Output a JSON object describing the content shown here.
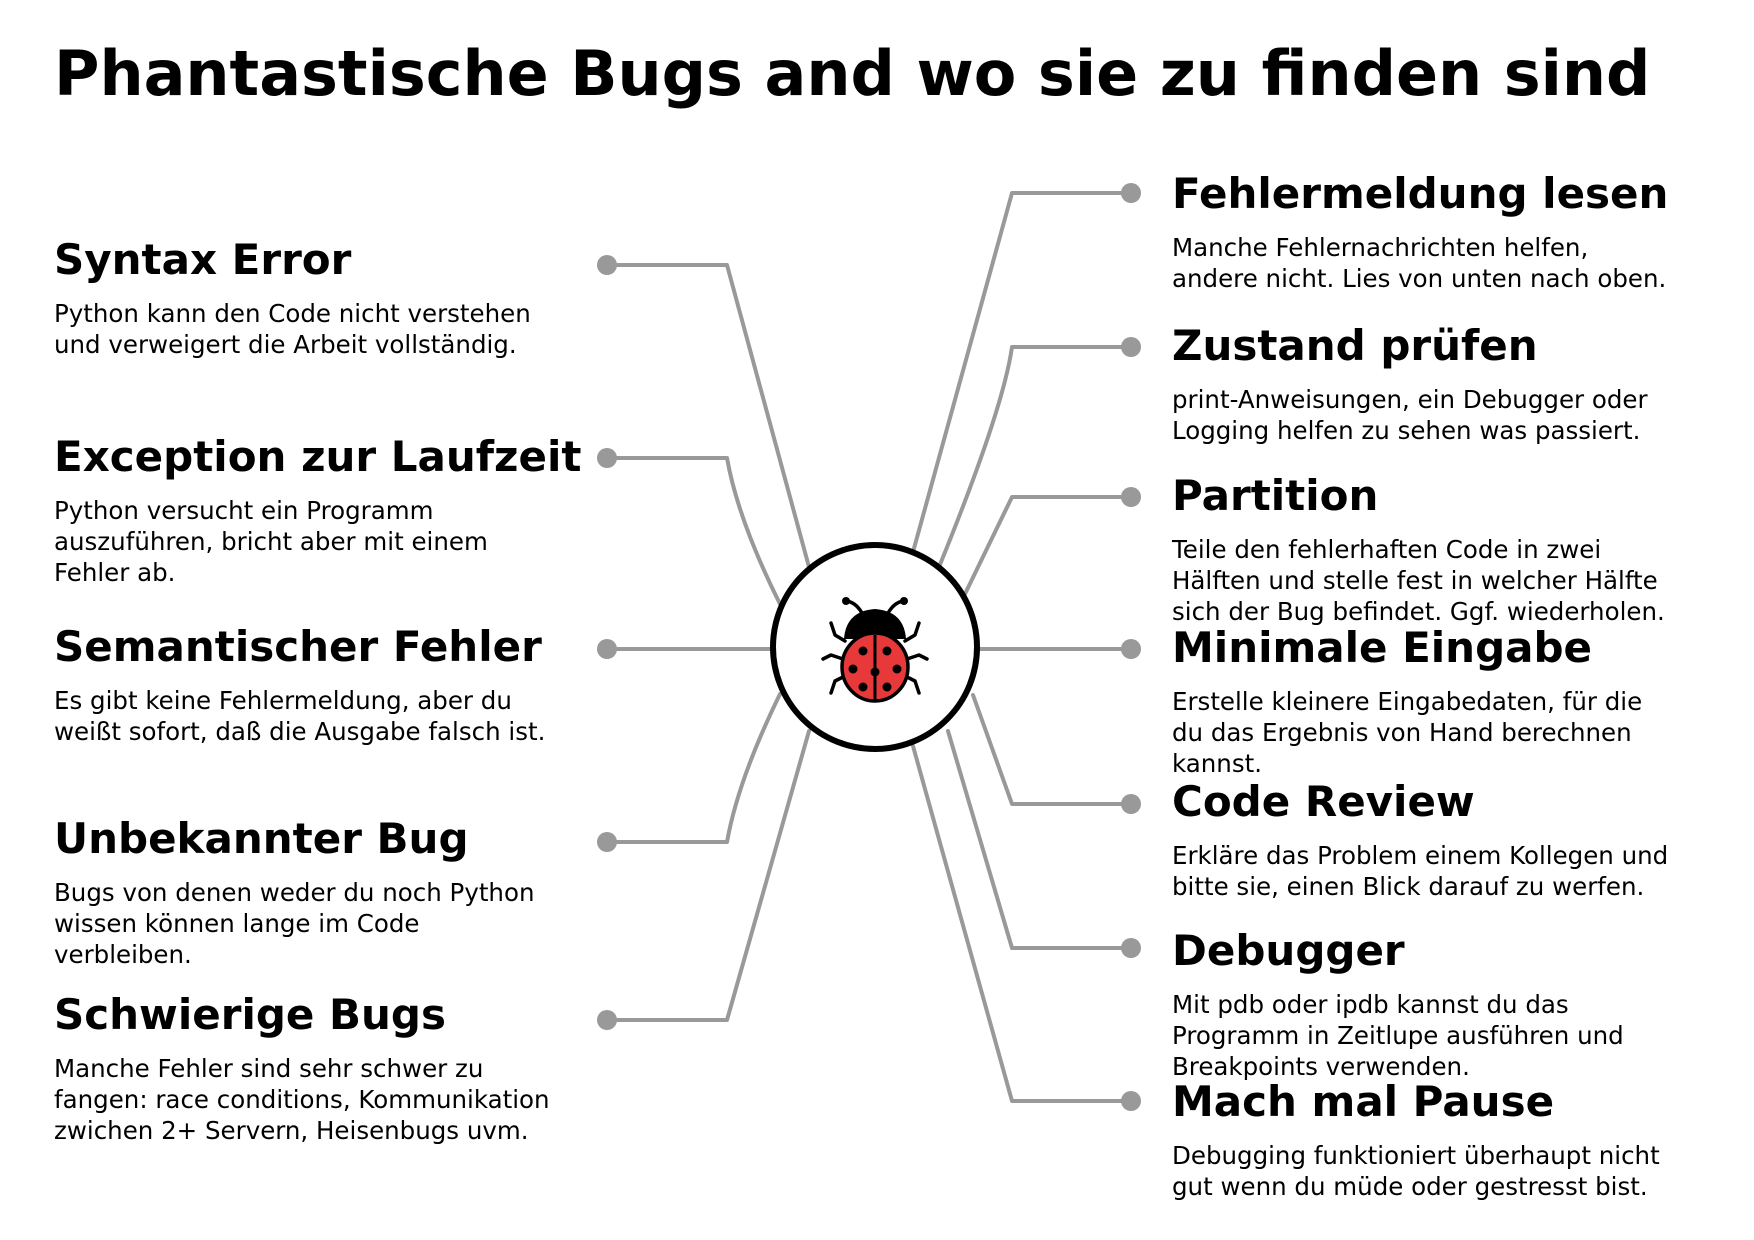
{
  "title": "Phantastische Bugs and wo sie zu finden sind",
  "colors": {
    "connector": "#999999",
    "bug_body": "#e8393a",
    "bug_head": "#000000"
  },
  "hub_icon": "ladybug-icon",
  "left_items": [
    {
      "title": "Syntax Error",
      "text": "Python kann den Code nicht verstehen\nund verweigert die Arbeit vollständig."
    },
    {
      "title": "Exception zur Laufzeit",
      "text": "Python versucht ein Programm\nauszuführen, bricht aber mit einem\nFehler ab."
    },
    {
      "title": "Semantischer Fehler",
      "text": "Es gibt keine Fehlermeldung, aber du\nweißt sofort, daß die Ausgabe falsch ist."
    },
    {
      "title": "Unbekannter Bug",
      "text": "Bugs von denen weder du noch Python\nwissen können lange im Code\nverbleiben."
    },
    {
      "title": "Schwierige Bugs",
      "text": "Manche Fehler sind sehr schwer zu\nfangen: race conditions, Kommunikation\nzwichen 2+ Servern, Heisenbugs uvm."
    }
  ],
  "right_items": [
    {
      "title": "Fehlermeldung lesen",
      "text": "Manche Fehlernachrichten helfen,\nandere nicht. Lies von unten nach oben."
    },
    {
      "title": "Zustand prüfen",
      "text": "print-Anweisungen, ein Debugger oder\nLogging helfen zu sehen was passiert."
    },
    {
      "title": "Partition",
      "text": "Teile den fehlerhaften Code in zwei\nHälften und stelle fest in welcher Hälfte\nsich der Bug befindet. Ggf. wiederholen."
    },
    {
      "title": "Minimale Eingabe",
      "text": "Erstelle kleinere Eingabedaten, für die\ndu das Ergebnis von Hand berechnen\nkannst."
    },
    {
      "title": "Code Review",
      "text": "Erkläre das Problem einem Kollegen und\nbitte sie, einen Blick darauf zu werfen."
    },
    {
      "title": "Debugger",
      "text": "Mit pdb oder ipdb kannst du das\nProgramm in Zeitlupe ausführen und\nBreakpoints verwenden."
    },
    {
      "title": "Mach mal Pause",
      "text": "Debugging funktioniert überhaupt nicht\ngut wenn du müde oder gestresst bist."
    }
  ]
}
